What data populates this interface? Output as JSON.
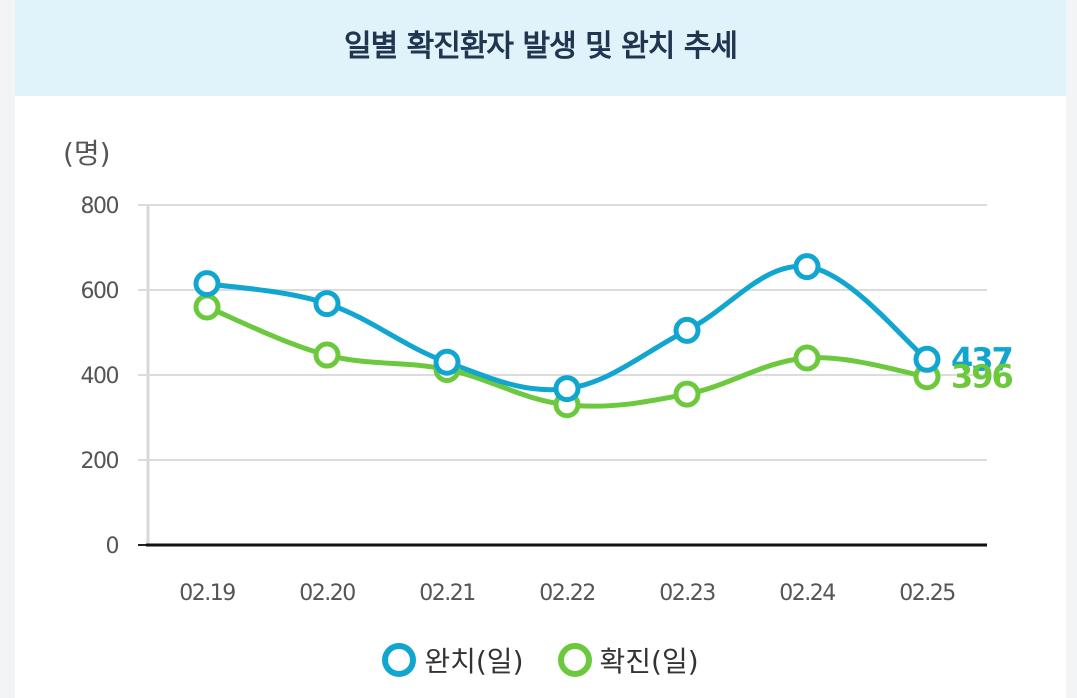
{
  "title": "일별 확진환자 발생 및 완치 추세",
  "chart_data": {
    "type": "line",
    "unit_label": "(명)",
    "categories": [
      "02.19",
      "02.20",
      "02.21",
      "02.22",
      "02.23",
      "02.24",
      "02.25"
    ],
    "ylim": [
      0,
      800
    ],
    "yticks": [
      "0",
      "200",
      "400",
      "600",
      "800"
    ],
    "grid": true,
    "series": [
      {
        "name": "완치(일)",
        "color": "#10a6d0",
        "values": [
          615,
          568,
          430,
          368,
          505,
          655,
          437
        ],
        "end_label": "437"
      },
      {
        "name": "확진(일)",
        "color": "#6cc83c",
        "values": [
          560,
          447,
          413,
          330,
          355,
          440,
          396
        ],
        "end_label": "396"
      }
    ],
    "legend_position": "bottom-center"
  },
  "legend": [
    {
      "label": "완치(일)",
      "color": "#10a6d0"
    },
    {
      "label": "확진(일)",
      "color": "#6cc83c"
    }
  ]
}
